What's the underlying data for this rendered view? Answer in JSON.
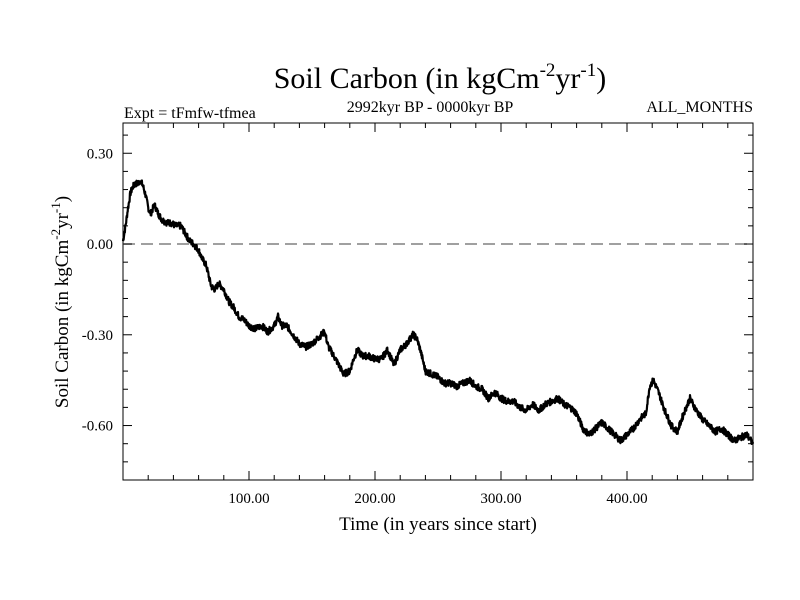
{
  "chart_data": {
    "type": "line",
    "title": {
      "main": "Soil Carbon (in kgCm",
      "sup1": "-2",
      "mid": "yr",
      "sup2": "-1",
      "end": ")"
    },
    "subtitle_left": "Expt = tFmfw-tfmea",
    "subtitle_center": "2992kyr BP - 0000kyr BP",
    "subtitle_right": "ALL_MONTHS",
    "xlabel": "Time (in years since start)",
    "ylabel": {
      "main": "Soil Carbon (in kgCm",
      "sup1": "-2",
      "mid": "yr",
      "sup2": "-1",
      "end": ")"
    },
    "xlim": [
      0,
      500
    ],
    "ylim": [
      -0.78,
      0.4
    ],
    "x_ticks": [
      100,
      200,
      300,
      400
    ],
    "x_tick_labels": [
      "100.00",
      "200.00",
      "300.00",
      "400.00"
    ],
    "y_ticks": [
      0.3,
      0.0,
      -0.3,
      -0.6
    ],
    "y_tick_labels": [
      "0.30",
      "0.00",
      "-0.30",
      "-0.60"
    ],
    "zero_line": {
      "value": 0.0,
      "style": "dashed",
      "color": "#808080"
    },
    "line_color": "#000000",
    "series": [
      {
        "name": "Soil Carbon",
        "x": [
          0,
          2,
          4,
          6,
          8,
          10,
          12,
          14,
          16,
          18,
          20,
          22,
          25,
          28,
          31,
          35,
          38,
          42,
          46,
          50,
          53,
          56,
          60,
          63,
          66,
          70,
          73,
          76,
          80,
          84,
          88,
          92,
          96,
          100,
          105,
          110,
          115,
          120,
          123,
          126,
          130,
          135,
          140,
          145,
          150,
          155,
          160,
          163,
          166,
          170,
          175,
          180,
          183,
          186,
          190,
          195,
          200,
          205,
          210,
          215,
          220,
          225,
          230,
          233,
          236,
          240,
          245,
          250,
          255,
          260,
          265,
          270,
          275,
          280,
          285,
          290,
          295,
          300,
          305,
          310,
          315,
          320,
          325,
          330,
          335,
          340,
          345,
          350,
          355,
          360,
          365,
          370,
          375,
          380,
          385,
          390,
          395,
          400,
          405,
          410,
          415,
          418,
          421,
          425,
          430,
          435,
          440,
          445,
          450,
          455,
          460,
          465,
          470,
          475,
          480,
          485,
          490,
          495,
          500
        ],
        "y": [
          0.01,
          0.06,
          0.12,
          0.17,
          0.19,
          0.2,
          0.2,
          0.21,
          0.19,
          0.16,
          0.12,
          0.1,
          0.13,
          0.1,
          0.08,
          0.07,
          0.07,
          0.06,
          0.06,
          0.03,
          0.01,
          0.0,
          -0.02,
          -0.05,
          -0.07,
          -0.14,
          -0.15,
          -0.13,
          -0.15,
          -0.19,
          -0.21,
          -0.24,
          -0.25,
          -0.27,
          -0.28,
          -0.27,
          -0.29,
          -0.27,
          -0.24,
          -0.27,
          -0.27,
          -0.3,
          -0.33,
          -0.34,
          -0.33,
          -0.31,
          -0.29,
          -0.34,
          -0.36,
          -0.39,
          -0.43,
          -0.42,
          -0.38,
          -0.35,
          -0.37,
          -0.37,
          -0.38,
          -0.38,
          -0.35,
          -0.4,
          -0.35,
          -0.33,
          -0.3,
          -0.31,
          -0.35,
          -0.42,
          -0.43,
          -0.44,
          -0.46,
          -0.46,
          -0.47,
          -0.46,
          -0.45,
          -0.47,
          -0.48,
          -0.51,
          -0.49,
          -0.51,
          -0.52,
          -0.52,
          -0.54,
          -0.55,
          -0.53,
          -0.55,
          -0.53,
          -0.52,
          -0.51,
          -0.53,
          -0.54,
          -0.56,
          -0.61,
          -0.63,
          -0.61,
          -0.59,
          -0.61,
          -0.63,
          -0.65,
          -0.63,
          -0.61,
          -0.58,
          -0.56,
          -0.47,
          -0.45,
          -0.49,
          -0.55,
          -0.6,
          -0.62,
          -0.56,
          -0.51,
          -0.55,
          -0.58,
          -0.6,
          -0.62,
          -0.61,
          -0.63,
          -0.65,
          -0.64,
          -0.63,
          -0.66
        ]
      }
    ]
  }
}
